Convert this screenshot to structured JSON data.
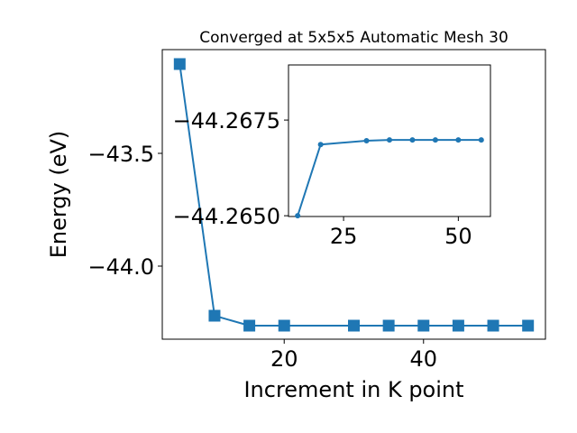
{
  "chart_data": [
    {
      "type": "line",
      "title": "Converged at 5x5x5 Automatic Mesh 30",
      "x_label": "Increment in K point",
      "y_label": "Energy (eV)",
      "x": [
        5,
        10,
        15,
        20,
        30,
        35,
        40,
        45,
        50,
        55
      ],
      "series": [
        {
          "color": "#1f77b4",
          "marker": "square",
          "values": [
            -43.104,
            -44.22,
            -44.264,
            -44.264,
            -44.264,
            -44.264,
            -44.264,
            -44.264,
            -44.264,
            -44.264
          ]
        }
      ],
      "xlim": [
        2.5,
        57.5
      ],
      "xticks": [
        20,
        40
      ],
      "ylim": [
        -44.324,
        -43.04
      ],
      "yticks": [
        {
          "value": -44.0,
          "label": "−44.0"
        },
        {
          "value": -43.5,
          "label": "−43.5"
        }
      ]
    },
    {
      "type": "line",
      "x": [
        15,
        20,
        30,
        35,
        40,
        45,
        50,
        55
      ],
      "series": [
        {
          "color": "#1f77b4",
          "marker": "circle",
          "values": [
            -44.265,
            -44.26686,
            -44.26696,
            -44.26698,
            -44.26698,
            -44.26698,
            -44.26698,
            -44.26698
          ]
        }
      ],
      "xlim": [
        13,
        57
      ],
      "xticks": [
        25,
        50
      ],
      "ylim": [
        -44.26498,
        -44.26894
      ],
      "yticks": [
        {
          "value": -44.265,
          "label": "−44.2650"
        },
        {
          "value": -44.2675,
          "label": "−44.2675"
        }
      ]
    }
  ]
}
